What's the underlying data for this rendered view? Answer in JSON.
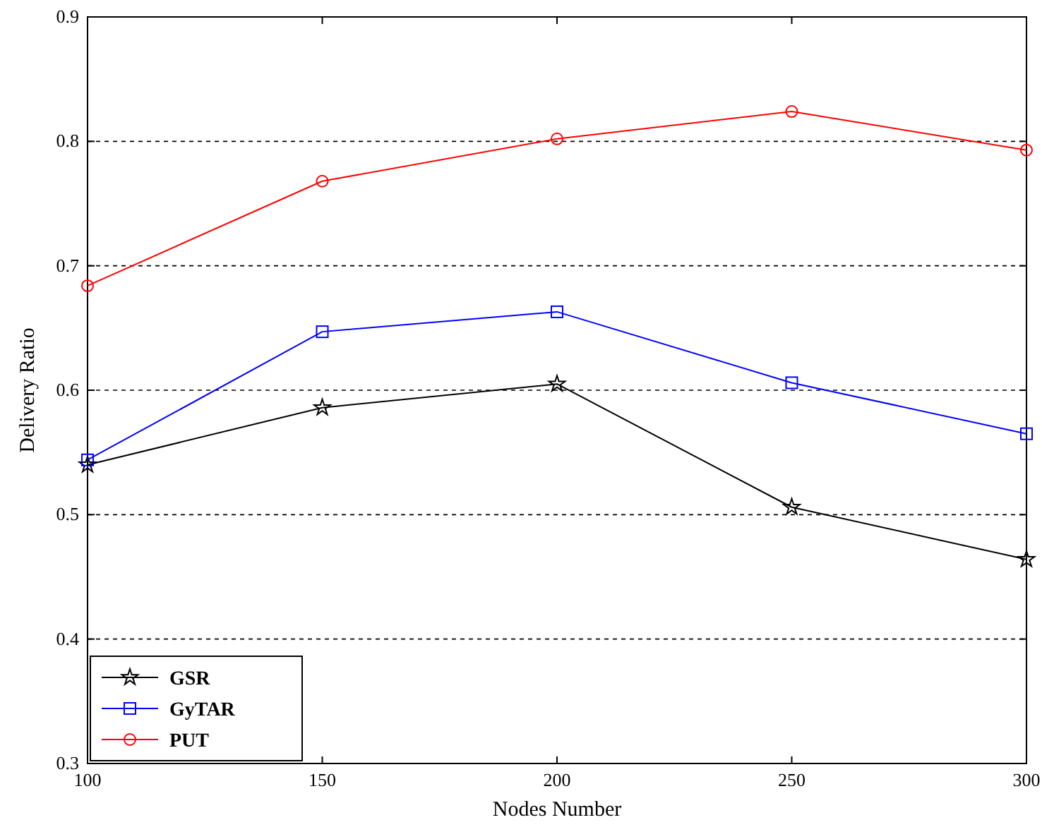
{
  "chart_data": {
    "type": "line",
    "xlabel": "Nodes Number",
    "ylabel": "Delivery Ratio",
    "x": [
      100,
      150,
      200,
      250,
      300
    ],
    "series": [
      {
        "name": "GSR",
        "color": "#000000",
        "marker": "star",
        "values": [
          0.54,
          0.586,
          0.605,
          0.506,
          0.464
        ]
      },
      {
        "name": "GyTAR",
        "color": "#0000ff",
        "marker": "square",
        "values": [
          0.544,
          0.647,
          0.663,
          0.606,
          0.565
        ]
      },
      {
        "name": "PUT",
        "color": "#ff0000",
        "marker": "circle",
        "values": [
          0.684,
          0.768,
          0.802,
          0.824,
          0.793
        ]
      }
    ],
    "xlim": [
      100,
      300
    ],
    "xticks": [
      100,
      150,
      200,
      250,
      300
    ],
    "ylim": [
      0.3,
      0.9
    ],
    "yticks": [
      0.3,
      0.4,
      0.5,
      0.6,
      0.7,
      0.8,
      0.9
    ],
    "grid": "y",
    "legend": "bottom left",
    "line_style": "solid"
  }
}
